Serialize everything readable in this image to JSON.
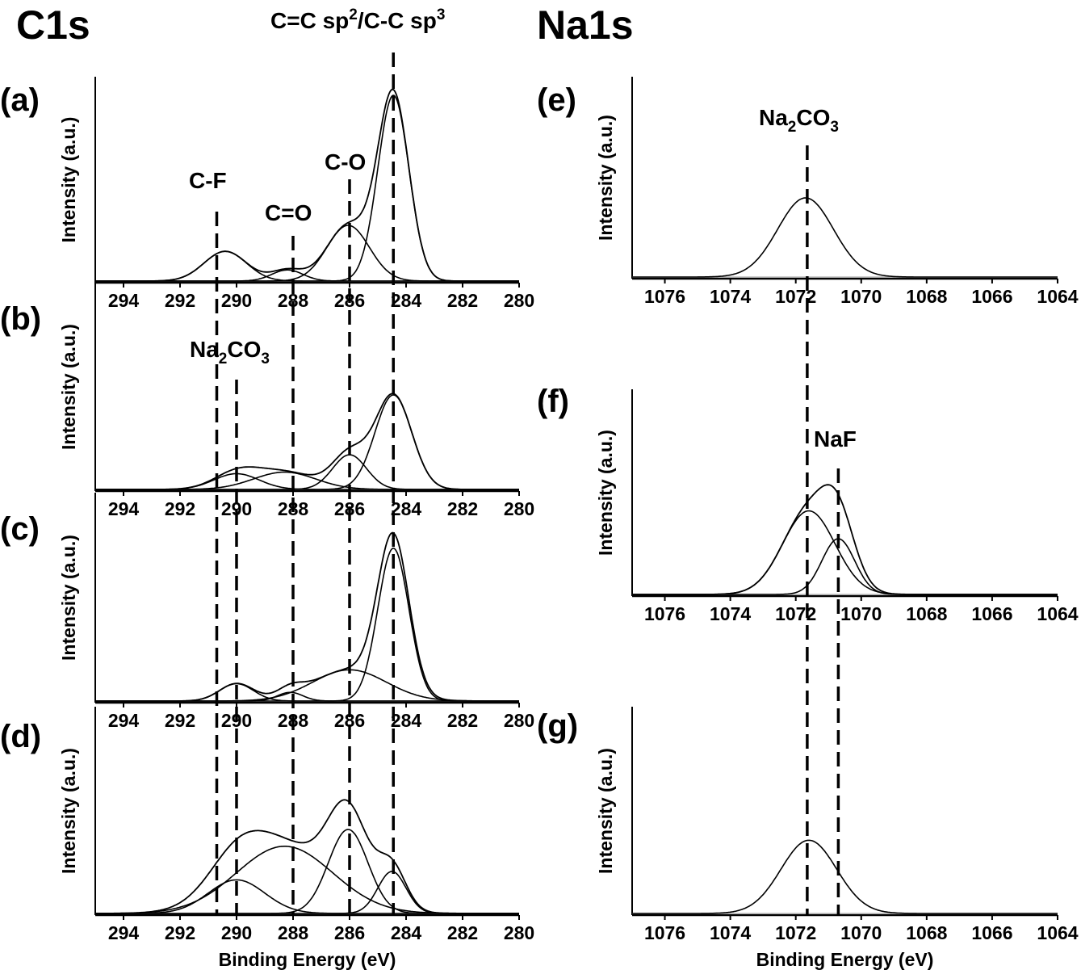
{
  "titles": {
    "left": "C1s",
    "right": "Na1s"
  },
  "x_axis_label": "Binding Energy (eV)",
  "y_axis_label": "Intensity (a.u.)",
  "annotations": {
    "sp": "C=C sp²/C-C sp³",
    "cf": "C-F",
    "co": "C-O",
    "c_double_o": "C=O",
    "na2co3_c1s": "Na₂CO₃",
    "na2co3_na1s": "Na₂CO₃",
    "naf": "NaF"
  },
  "chart_data": [
    {
      "panel": "(a)",
      "type": "line",
      "region": "C1s",
      "xlim": [
        295,
        280
      ],
      "x_ticks": [
        294,
        292,
        290,
        288,
        286,
        284,
        282,
        280
      ],
      "xlabel": "",
      "ylabel": "Intensity (a.u.)",
      "components": [
        {
          "center": 284.45,
          "height": 1.0,
          "width": 0.55
        },
        {
          "center": 286.05,
          "height": 0.3,
          "width": 0.75
        },
        {
          "center": 288.2,
          "height": 0.06,
          "width": 0.55
        },
        {
          "center": 290.4,
          "height": 0.16,
          "width": 0.75
        }
      ],
      "guide_lines_eV": [
        290.7,
        288.0,
        286.0,
        284.45
      ]
    },
    {
      "panel": "(b)",
      "type": "line",
      "region": "C1s",
      "xlim": [
        295,
        280
      ],
      "x_ticks": [
        294,
        292,
        290,
        288,
        286,
        284,
        282,
        280
      ],
      "xlabel": "",
      "ylabel": "Intensity (a.u.)",
      "components": [
        {
          "center": 284.45,
          "height": 0.6,
          "width": 0.65
        },
        {
          "center": 286.0,
          "height": 0.22,
          "width": 0.6
        },
        {
          "center": 288.3,
          "height": 0.11,
          "width": 1.1
        },
        {
          "center": 290.0,
          "height": 0.1,
          "width": 0.8
        }
      ],
      "guide_lines_eV": [
        290.7,
        290.0,
        288.0,
        286.0,
        284.45
      ]
    },
    {
      "panel": "(c)",
      "type": "line",
      "region": "C1s",
      "xlim": [
        295,
        280
      ],
      "x_ticks": [
        294,
        292,
        290,
        288,
        286,
        284,
        282,
        280
      ],
      "xlabel": "",
      "ylabel": "Intensity (a.u.)",
      "components": [
        {
          "center": 284.45,
          "height": 0.88,
          "width": 0.55
        },
        {
          "center": 286.0,
          "height": 0.18,
          "width": 1.3
        },
        {
          "center": 288.1,
          "height": 0.05,
          "width": 0.45
        },
        {
          "center": 290.0,
          "height": 0.1,
          "width": 0.6
        }
      ],
      "guide_lines_eV": [
        290.7,
        290.0,
        288.0,
        286.0,
        284.45
      ]
    },
    {
      "panel": "(d)",
      "type": "line",
      "region": "C1s",
      "xlim": [
        295,
        280
      ],
      "x_ticks": [
        294,
        292,
        290,
        288,
        286,
        284,
        282,
        280
      ],
      "xlabel": "Binding Energy (eV)",
      "ylabel": "Intensity (a.u.)",
      "components": [
        {
          "center": 284.5,
          "height": 0.1,
          "width": 0.5
        },
        {
          "center": 286.05,
          "height": 0.2,
          "width": 0.7
        },
        {
          "center": 288.3,
          "height": 0.16,
          "width": 1.7
        },
        {
          "center": 290.0,
          "height": 0.08,
          "width": 1.0
        }
      ],
      "guide_lines_eV": [
        290.6,
        290.0,
        288.0,
        286.0,
        284.5
      ]
    },
    {
      "panel": "(e)",
      "type": "line",
      "region": "Na1s",
      "xlim": [
        1077,
        1064
      ],
      "x_ticks": [
        1076,
        1074,
        1072,
        1070,
        1068,
        1066,
        1064
      ],
      "xlabel": "",
      "ylabel": "Intensity (a.u.)",
      "components": [
        {
          "center": 1071.7,
          "height": 0.4,
          "width": 0.85
        }
      ],
      "guide_lines_eV": [
        1071.7
      ]
    },
    {
      "panel": "(f)",
      "type": "line",
      "region": "Na1s",
      "xlim": [
        1077,
        1064
      ],
      "x_ticks": [
        1076,
        1074,
        1072,
        1070,
        1068,
        1066,
        1064
      ],
      "xlabel": "",
      "ylabel": "Intensity (a.u.)",
      "components": [
        {
          "center": 1071.6,
          "height": 0.3,
          "width": 0.8
        },
        {
          "center": 1070.7,
          "height": 0.2,
          "width": 0.5
        }
      ],
      "guide_lines_eV": [
        1071.7,
        1070.7
      ]
    },
    {
      "panel": "(g)",
      "type": "line",
      "region": "Na1s",
      "xlim": [
        1077,
        1064
      ],
      "x_ticks": [
        1076,
        1074,
        1072,
        1070,
        1068,
        1066,
        1064
      ],
      "xlabel": "Binding Energy (eV)",
      "ylabel": "Intensity (a.u.)",
      "components": [
        {
          "center": 1071.6,
          "height": 0.37,
          "width": 0.85
        }
      ],
      "guide_lines_eV": [
        1071.7,
        1070.7
      ]
    }
  ]
}
